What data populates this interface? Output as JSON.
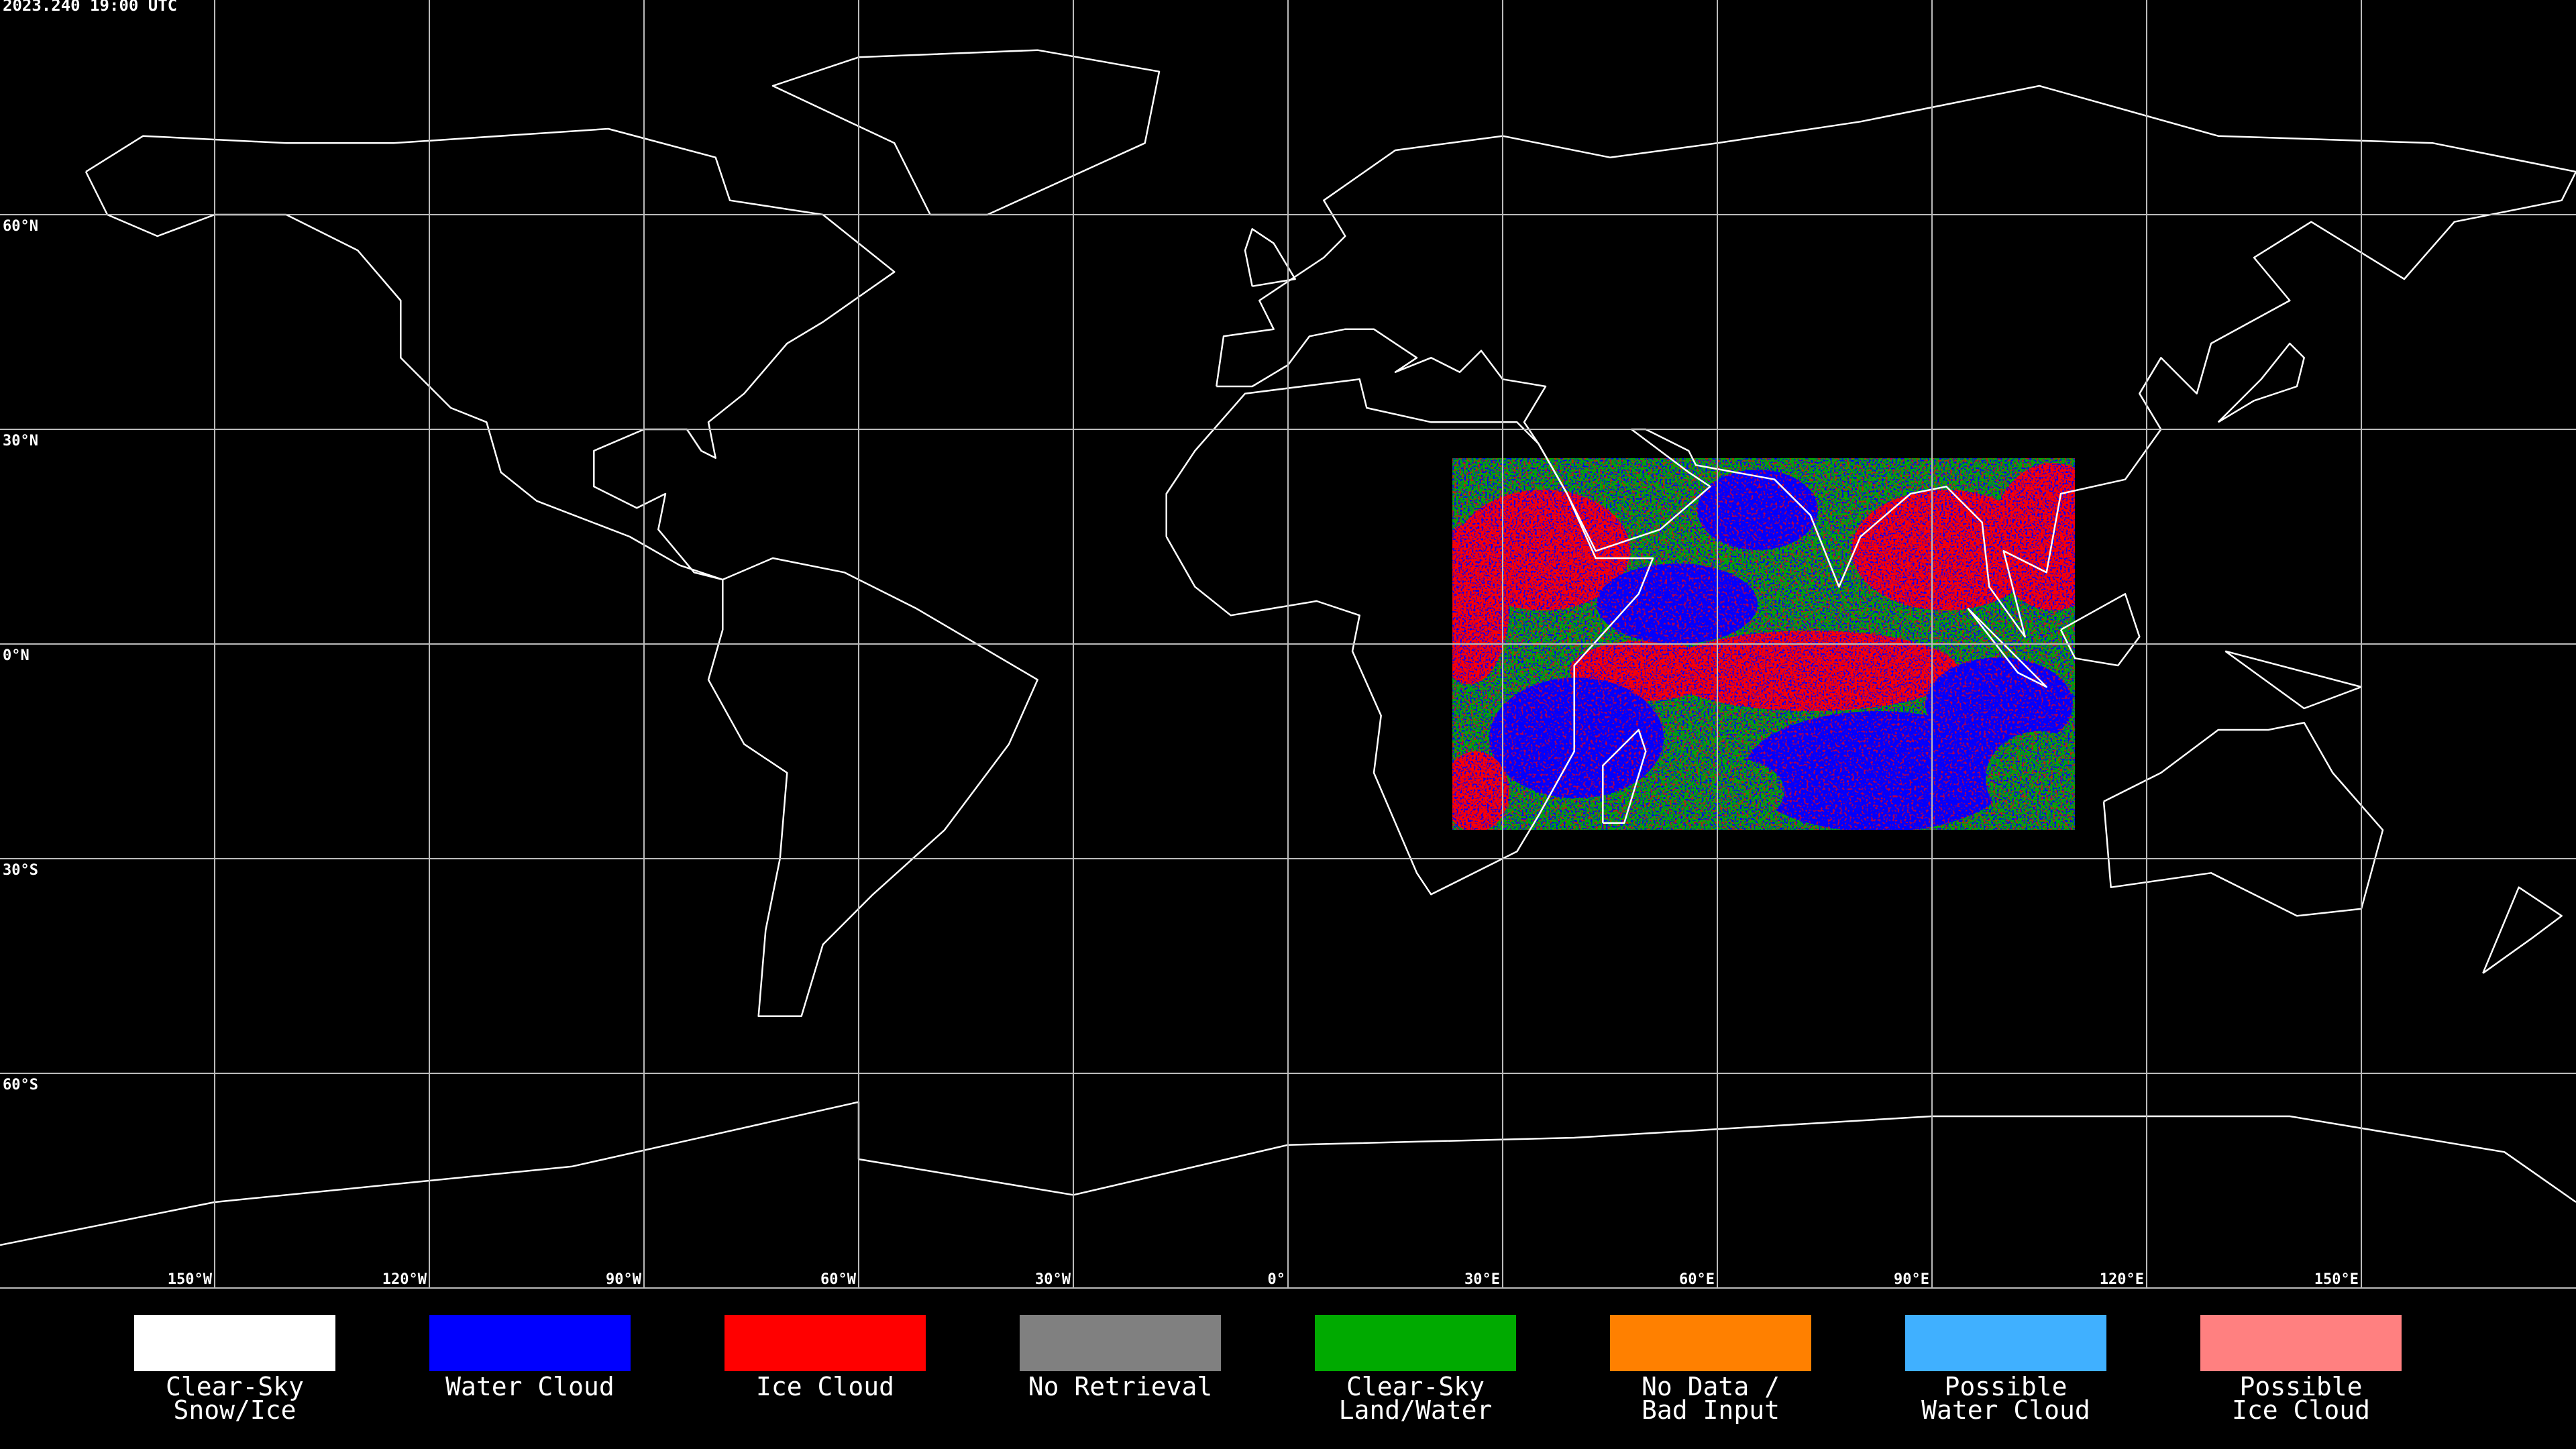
{
  "timestamp": "2023.240 19:00 UTC",
  "map": {
    "lat_labels": [
      "60°N",
      "30°N",
      "0°N",
      "30°S",
      "60°S"
    ],
    "lon_labels": [
      "150°W",
      "120°W",
      "90°W",
      "60°W",
      "30°W",
      "0°",
      "30°E",
      "60°E",
      "90°E",
      "120°E",
      "150°E"
    ]
  },
  "legend": [
    {
      "lines": [
        "Clear-Sky",
        "Snow/Ice"
      ],
      "color": "#ffffff"
    },
    {
      "lines": [
        "Water Cloud"
      ],
      "color": "#0000ff"
    },
    {
      "lines": [
        "Ice Cloud"
      ],
      "color": "#ff0000"
    },
    {
      "lines": [
        "No Retrieval"
      ],
      "color": "#808080"
    },
    {
      "lines": [
        "Clear-Sky",
        "Land/Water"
      ],
      "color": "#00aa00"
    },
    {
      "lines": [
        "No Data /",
        "Bad Input"
      ],
      "color": "#ff8000"
    },
    {
      "lines": [
        "Possible",
        "Water Cloud"
      ],
      "color": "#40b0ff"
    },
    {
      "lines": [
        "Possible",
        "Ice Cloud"
      ],
      "color": "#ff8080"
    }
  ]
}
